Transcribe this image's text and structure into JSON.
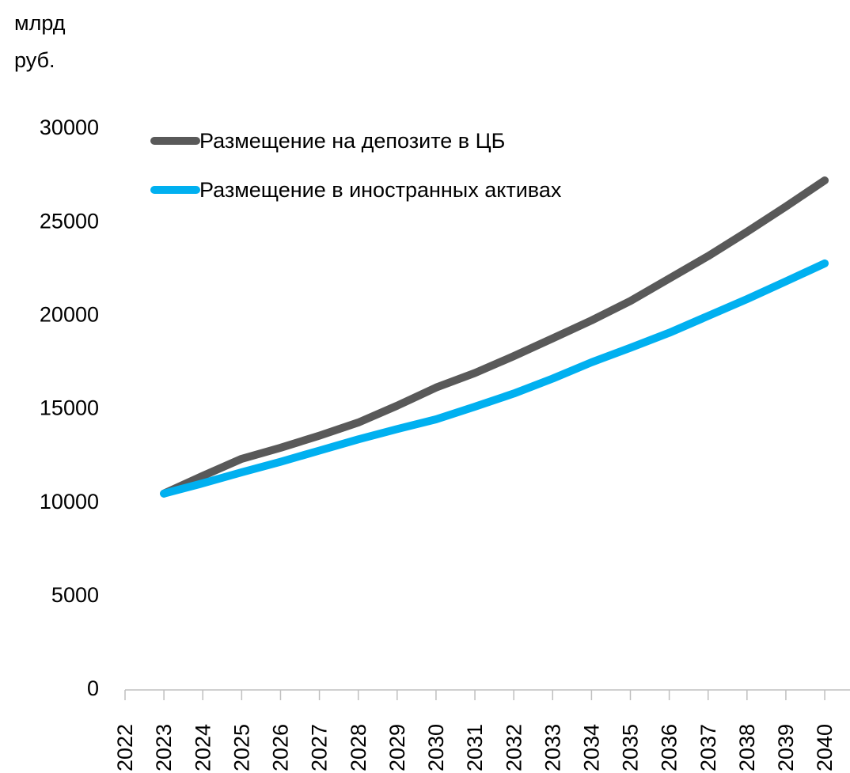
{
  "chart_data": {
    "type": "line",
    "y_label": "млрд руб.",
    "x": [
      2023,
      2024,
      2025,
      2026,
      2027,
      2028,
      2029,
      2030,
      2031,
      2032,
      2033,
      2034,
      2035,
      2036,
      2037,
      2038,
      2039,
      2040
    ],
    "series": [
      {
        "name": "Размещение на депозите в ЦБ",
        "color": "#595959",
        "values": [
          10500,
          11450,
          12360,
          12950,
          13600,
          14300,
          15200,
          16170,
          16950,
          17850,
          18800,
          19760,
          20800,
          22000,
          23200,
          24500,
          25850,
          27250
        ]
      },
      {
        "name": "Размещение в иностранных активах",
        "color": "#00b0f0",
        "values": [
          10500,
          11050,
          11640,
          12200,
          12800,
          13400,
          13950,
          14470,
          15150,
          15850,
          16650,
          17520,
          18300,
          19100,
          20000,
          20900,
          21850,
          22810
        ]
      }
    ],
    "xlim": [
      2022,
      2040.65
    ],
    "xticks": [
      2022,
      2023,
      2024,
      2025,
      2026,
      2027,
      2028,
      2029,
      2030,
      2031,
      2032,
      2033,
      2034,
      2035,
      2036,
      2037,
      2038,
      2039,
      2040
    ],
    "ylim": [
      0,
      30000
    ],
    "yticks": [
      0,
      5000,
      10000,
      15000,
      20000,
      25000,
      30000
    ],
    "legend": "top-left",
    "grid": false
  }
}
